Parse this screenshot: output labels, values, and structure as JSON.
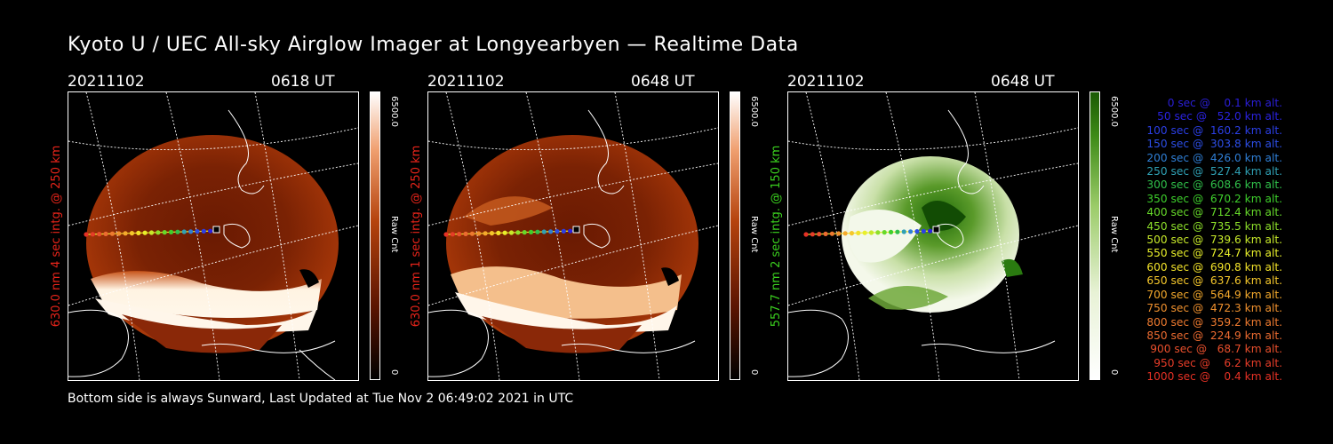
{
  "title": "Kyoto U / UEC All-sky Airglow Imager at Longyearbyen — Realtime Data",
  "panels": [
    {
      "date": "20211102",
      "time": "0618 UT",
      "ylabel": "630.0 nm 4 sec intg. @ 250 km",
      "ylabel_color": "#e8241a",
      "cbar_max": "6500.0",
      "cbar_unit": "Raw Cnt",
      "cbar_min": "0",
      "theme": "red"
    },
    {
      "date": "20211102",
      "time": "0648 UT",
      "ylabel": "630.0 nm 1 sec intg. @ 250 km",
      "ylabel_color": "#e8241a",
      "cbar_max": "6500.0",
      "cbar_unit": "Raw Cnt",
      "cbar_min": "0",
      "theme": "red"
    },
    {
      "date": "20211102",
      "time": "0648 UT",
      "ylabel": "557.7 nm 2 sec intg. @ 150 km",
      "ylabel_color": "#3bd11f",
      "cbar_max": "6500.0",
      "cbar_unit": "Raw Cnt",
      "cbar_min": "0",
      "theme": "green"
    }
  ],
  "legend": [
    {
      "text": "0 sec @    0.1 km alt.",
      "color": "#2a1ed6"
    },
    {
      "text": "50 sec @   52.0 km alt.",
      "color": "#2a22e0"
    },
    {
      "text": "100 sec @  160.2 km alt.",
      "color": "#2b3fe6"
    },
    {
      "text": "150 sec @  303.8 km alt.",
      "color": "#2c4ee6"
    },
    {
      "text": "200 sec @  426.0 km alt.",
      "color": "#2f7fd6"
    },
    {
      "text": "250 sec @  527.4 km alt.",
      "color": "#2fa0b4"
    },
    {
      "text": "300 sec @  608.6 km alt.",
      "color": "#30c04a"
    },
    {
      "text": "350 sec @  670.2 km alt.",
      "color": "#3ed02c"
    },
    {
      "text": "400 sec @  712.4 km alt.",
      "color": "#66d92a"
    },
    {
      "text": "450 sec @  735.5 km alt.",
      "color": "#8ddf2a"
    },
    {
      "text": "500 sec @  739.6 km alt.",
      "color": "#c7e92a"
    },
    {
      "text": "550 sec @  724.7 km alt.",
      "color": "#e8ef2a"
    },
    {
      "text": "600 sec @  690.8 km alt.",
      "color": "#f2e22a"
    },
    {
      "text": "650 sec @  637.6 km alt.",
      "color": "#f5c72b"
    },
    {
      "text": "700 sec @  564.9 km alt.",
      "color": "#f4a92c"
    },
    {
      "text": "750 sec @  472.3 km alt.",
      "color": "#f0912e"
    },
    {
      "text": "800 sec @  359.2 km alt.",
      "color": "#ee7a2f"
    },
    {
      "text": "850 sec @  224.9 km alt.",
      "color": "#ec6b30"
    },
    {
      "text": "900 sec @   68.7 km alt.",
      "color": "#e84f2c"
    },
    {
      "text": "950 sec @    6.2 km alt.",
      "color": "#e63c28"
    },
    {
      "text": "1000 sec @    0.4 km alt.",
      "color": "#e63125"
    }
  ],
  "footer": "Bottom side is always Sunward, Last Updated at Tue Nov  2 06:49:02 2021 in UTC"
}
